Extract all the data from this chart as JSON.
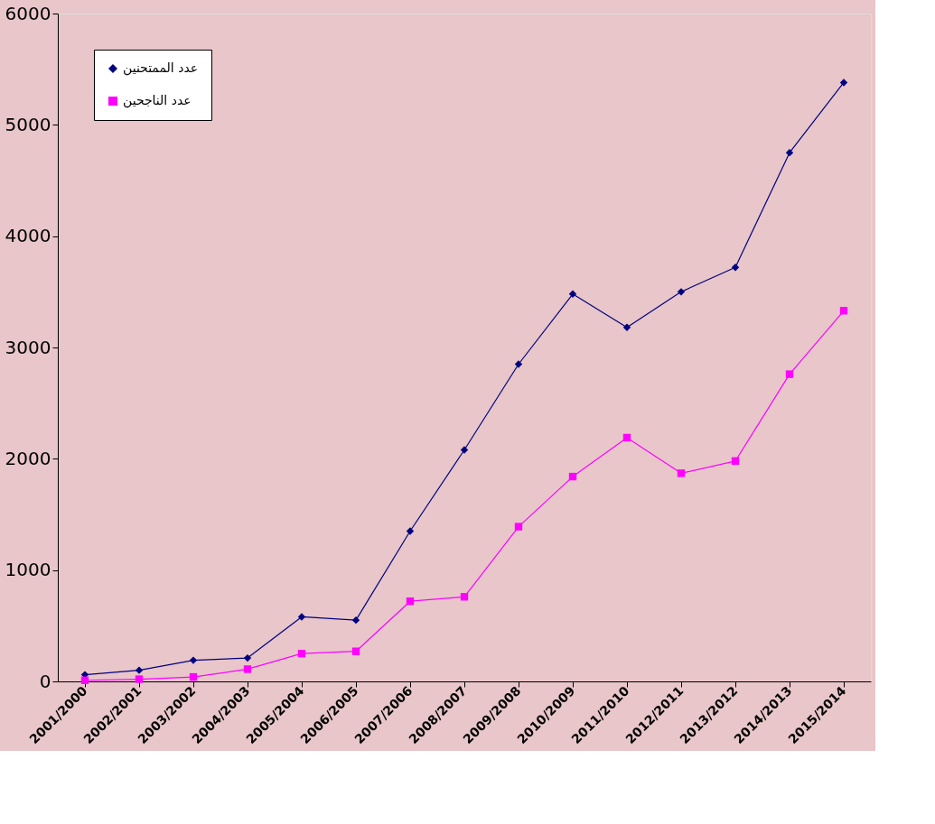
{
  "chart_data": {
    "type": "line",
    "categories": [
      "2001/2000",
      "2002/2001",
      "2003/2002",
      "2004/2003",
      "2005/2004",
      "2006/2005",
      "2007/2006",
      "2008/2007",
      "2009/2008",
      "2010/2009",
      "2011/2010",
      "2012/2011",
      "2013/2012",
      "2014/2013",
      "2015/2014"
    ],
    "series": [
      {
        "name": "عدد الممتحنين",
        "color": "#000080",
        "marker": "diamond",
        "values": [
          60,
          100,
          190,
          210,
          580,
          550,
          1350,
          2080,
          2850,
          3480,
          3180,
          3500,
          3720,
          4750,
          5380
        ]
      },
      {
        "name": "عدد الناجحين",
        "color": "#ff00ff",
        "marker": "square",
        "values": [
          10,
          20,
          40,
          110,
          250,
          270,
          720,
          760,
          1390,
          1840,
          2190,
          1870,
          1980,
          2760,
          3330
        ]
      }
    ],
    "ylim": [
      0,
      6000
    ],
    "yticks": [
      0,
      1000,
      2000,
      3000,
      4000,
      5000,
      6000
    ],
    "grid": false,
    "legend": "top left"
  }
}
